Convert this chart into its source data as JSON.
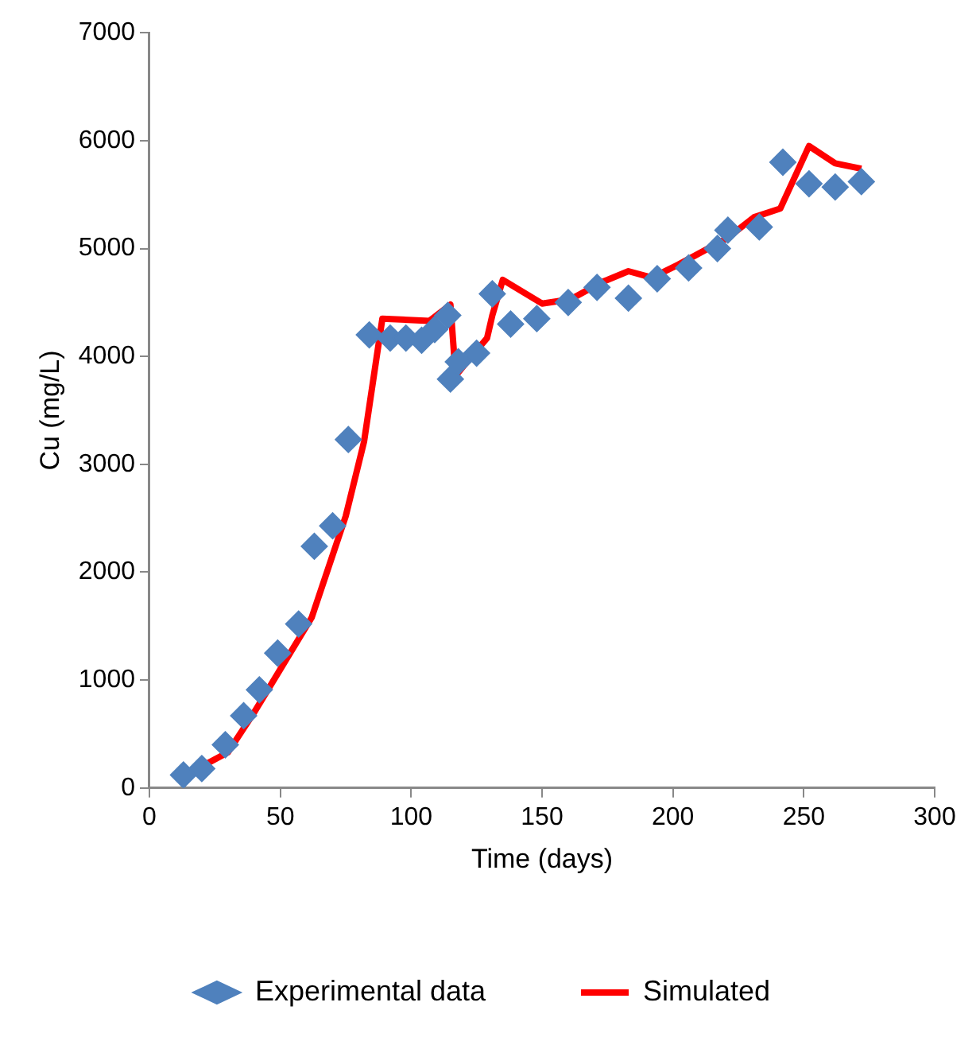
{
  "chart_data": {
    "type": "scatter",
    "xlabel": "Time (days)",
    "ylabel": "Cu (mg/L)",
    "xlim": [
      0,
      300
    ],
    "xticks": [
      0,
      50,
      100,
      150,
      200,
      250,
      300
    ],
    "ylim": [
      0,
      7000
    ],
    "yticks": [
      0,
      1000,
      2000,
      3000,
      4000,
      5000,
      6000,
      7000
    ],
    "grid": false,
    "legend": "bottom",
    "series": [
      {
        "name": "Experimental data",
        "marker": "diamond",
        "color": "#4f81bd",
        "x": [
          13,
          20,
          29,
          36,
          42,
          49,
          57,
          63,
          70,
          76,
          84,
          92,
          98,
          104,
          109,
          114,
          115,
          118,
          125,
          131,
          138,
          148,
          160,
          171,
          183,
          194,
          206,
          217,
          221,
          233,
          242,
          252,
          262,
          272
        ],
        "values": [
          120,
          180,
          400,
          670,
          910,
          1250,
          1520,
          2240,
          2430,
          3230,
          4200,
          4170,
          4170,
          4150,
          4250,
          4380,
          3790,
          3950,
          4030,
          4580,
          4300,
          4350,
          4500,
          4640,
          4540,
          4720,
          4820,
          5000,
          5170,
          5200,
          5800,
          5600,
          5570,
          5620
        ]
      },
      {
        "name": "Simulated",
        "type": "line",
        "marker": "none",
        "line_style": "solid",
        "color": "#ff0000",
        "x": [
          10,
          20,
          30,
          40,
          50,
          62,
          75,
          82,
          89,
          107,
          115,
          117,
          122,
          129,
          131,
          135,
          150,
          161,
          173,
          183,
          192,
          202,
          221,
          231,
          241,
          252,
          262,
          272
        ],
        "values": [
          100,
          200,
          330,
          700,
          1100,
          1580,
          2520,
          3210,
          4350,
          4330,
          4480,
          3820,
          3970,
          4170,
          4380,
          4710,
          4490,
          4530,
          4690,
          4790,
          4730,
          4850,
          5100,
          5290,
          5370,
          5950,
          5790,
          5740
        ]
      }
    ]
  }
}
